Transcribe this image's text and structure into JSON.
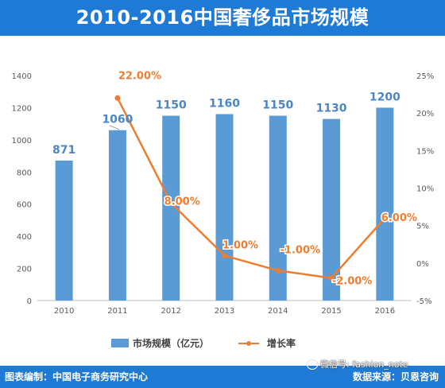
{
  "title": "2010-2016中国奢侈品市场规模",
  "footer": {
    "left": "图表编制：中国电子商务研究中心",
    "right": "数据来源：贝恩咨询"
  },
  "watermark": {
    "icon": "wechat-icon",
    "text": "微信号: fashion_note"
  },
  "colors": {
    "header": "#1f7ad6",
    "bar": "#5b9bd5",
    "line": "#ed7d31",
    "label_bar": "#4a86c5",
    "label_line": "#ed7d31"
  },
  "chart_data": {
    "type": "bar",
    "categories": [
      "2010",
      "2011",
      "2012",
      "2013",
      "2014",
      "2015",
      "2016"
    ],
    "series": [
      {
        "name": "市场规模（亿元）",
        "type": "bar",
        "axis": "left",
        "values": [
          871,
          1060,
          1150,
          1160,
          1150,
          1130,
          1200
        ],
        "labels": [
          "871",
          "1060",
          "1150",
          "1160",
          "1150",
          "1130",
          "1200"
        ]
      },
      {
        "name": "增长率",
        "type": "line",
        "axis": "right",
        "values": [
          null,
          22,
          8,
          1,
          -1,
          -2,
          6
        ],
        "labels": [
          "",
          "22.00%",
          "8.00%",
          "1.00%",
          "-1.00%",
          "-2.00%",
          "6.00%"
        ]
      }
    ],
    "y_left": {
      "range": [
        0,
        1400
      ],
      "ticks": [
        "0",
        "200",
        "400",
        "600",
        "800",
        "1000",
        "1200",
        "1400"
      ]
    },
    "y_right": {
      "range": [
        -5,
        25
      ],
      "ticks": [
        "-5%",
        "0%",
        "5%",
        "10%",
        "15%",
        "20%",
        "25%"
      ]
    },
    "grid": false,
    "legend": "bottom"
  }
}
